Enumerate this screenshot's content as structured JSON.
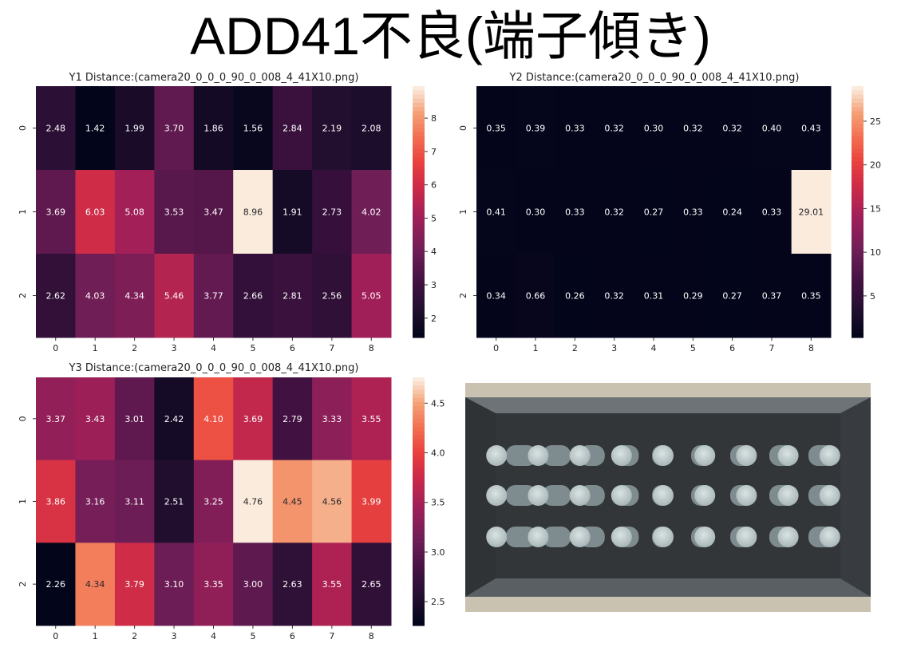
{
  "page_title": "ADD41不良(端子傾き)",
  "chart_data": [
    {
      "type": "heatmap",
      "title": "Y1 Distance:(camera20_0_0_0_90_0_008_4_41X10.png)",
      "x": [
        "0",
        "1",
        "2",
        "3",
        "4",
        "5",
        "6",
        "7",
        "8"
      ],
      "y": [
        "0",
        "1",
        "2"
      ],
      "values": [
        [
          2.48,
          1.42,
          1.99,
          3.7,
          1.86,
          1.56,
          2.84,
          2.19,
          2.08
        ],
        [
          3.69,
          6.03,
          5.08,
          3.53,
          3.47,
          8.96,
          1.91,
          2.73,
          4.02
        ],
        [
          2.62,
          4.03,
          4.34,
          5.46,
          3.77,
          2.66,
          2.81,
          2.56,
          5.05
        ]
      ],
      "vmin": 1.42,
      "vmax": 8.96,
      "colorbar_ticks": [
        2,
        3,
        4,
        5,
        6,
        7,
        8
      ],
      "colormap": "rocket"
    },
    {
      "type": "heatmap",
      "title": "Y2 Distance:(camera20_0_0_0_90_0_008_4_41X10.png)",
      "x": [
        "0",
        "1",
        "2",
        "3",
        "4",
        "5",
        "6",
        "7",
        "8"
      ],
      "y": [
        "0",
        "1",
        "2"
      ],
      "values": [
        [
          0.35,
          0.39,
          0.33,
          0.32,
          0.3,
          0.32,
          0.32,
          0.4,
          0.43
        ],
        [
          0.41,
          0.3,
          0.33,
          0.32,
          0.27,
          0.33,
          0.24,
          0.33,
          29.01
        ],
        [
          0.34,
          0.66,
          0.26,
          0.32,
          0.31,
          0.29,
          0.27,
          0.37,
          0.35
        ]
      ],
      "vmin": 0.24,
      "vmax": 29.01,
      "colorbar_ticks": [
        5,
        10,
        15,
        20,
        25
      ],
      "colormap": "rocket"
    },
    {
      "type": "heatmap",
      "title": "Y3 Distance:(camera20_0_0_0_90_0_008_4_41X10.png)",
      "x": [
        "0",
        "1",
        "2",
        "3",
        "4",
        "5",
        "6",
        "7",
        "8"
      ],
      "y": [
        "0",
        "1",
        "2"
      ],
      "values": [
        [
          3.37,
          3.43,
          3.01,
          2.42,
          4.1,
          3.69,
          2.79,
          3.33,
          3.55
        ],
        [
          3.86,
          3.16,
          3.11,
          2.51,
          3.25,
          4.76,
          4.45,
          4.56,
          3.99
        ],
        [
          2.26,
          4.34,
          3.79,
          3.1,
          3.35,
          3.0,
          2.63,
          3.55,
          2.65
        ]
      ],
      "vmin": 2.26,
      "vmax": 4.76,
      "colorbar_ticks": [
        "2.5",
        "3.0",
        "3.5",
        "4.0",
        "4.5"
      ],
      "colormap": "rocket"
    }
  ]
}
